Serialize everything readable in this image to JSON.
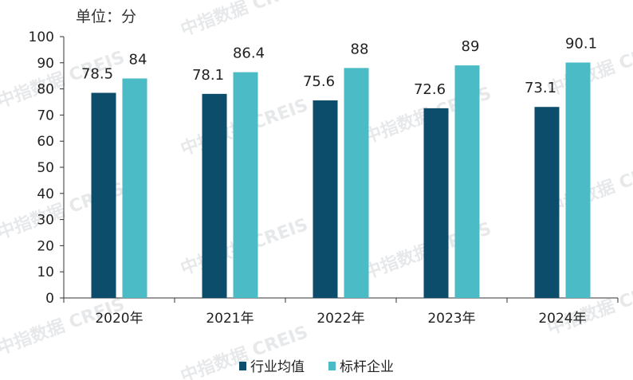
{
  "chart_data": {
    "type": "bar",
    "unit_label": "单位：分",
    "categories": [
      "2020年",
      "2021年",
      "2022年",
      "2023年",
      "2024年"
    ],
    "series": [
      {
        "name": "行业均值",
        "color": "#0c4d6b",
        "values": [
          78.5,
          78.1,
          75.6,
          72.6,
          73.1
        ],
        "labels": [
          "78.5",
          "78.1",
          "75.6",
          "72.6",
          "73.1"
        ]
      },
      {
        "name": "标杆企业",
        "color": "#4bbcc5",
        "values": [
          84,
          86.4,
          88,
          89,
          90.1
        ],
        "labels": [
          "84",
          "86.4",
          "88",
          "89",
          "90.1"
        ]
      }
    ],
    "ylim": [
      0,
      100
    ],
    "yticks": [
      0,
      10,
      20,
      30,
      40,
      50,
      60,
      70,
      80,
      90,
      100
    ],
    "legend_position": "bottom",
    "grid": false
  },
  "watermark": "中指数据 CREIS"
}
